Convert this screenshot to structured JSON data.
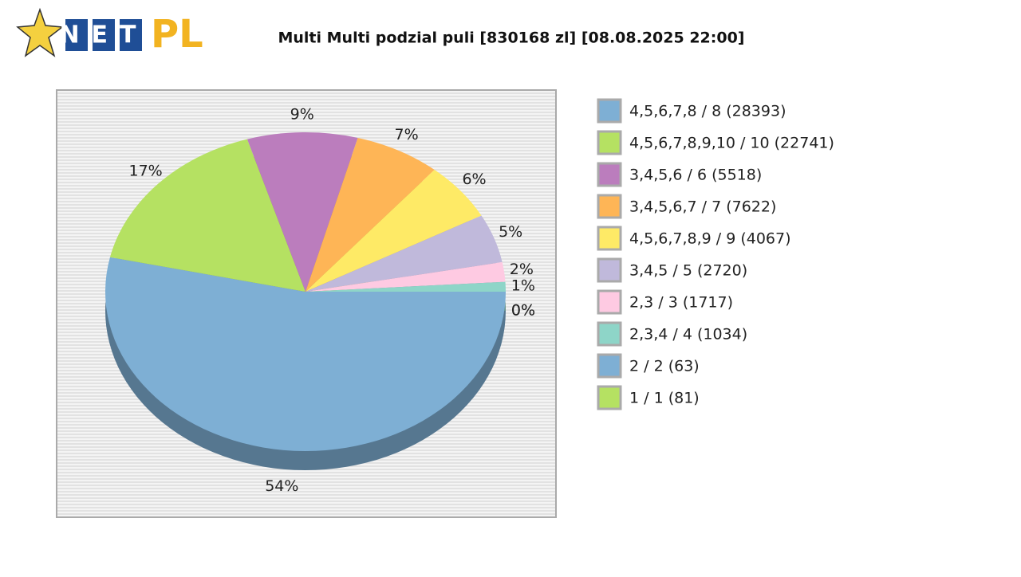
{
  "logo": {
    "net": "NET",
    "pl": "PL"
  },
  "chart_data": {
    "type": "pie",
    "title": "Multi Multi podzial puli [830168 zl] [08.08.2025 22:00]",
    "categories": [
      "4,5,6,7,8 / 8 (28393)",
      "4,5,6,7,8,9,10 / 10 (22741)",
      "3,4,5,6 / 6 (5518)",
      "3,4,5,6,7 / 7 (7622)",
      "4,5,6,7,8,9 / 9 (4067)",
      "3,4,5 / 5 (2720)",
      "2,3 / 3 (1717)",
      "2,3,4 / 4 (1034)",
      "2 / 2 (63)",
      "1 / 1 (81)"
    ],
    "values": [
      54,
      17,
      9,
      7,
      6,
      5,
      2,
      1,
      0,
      0
    ],
    "value_labels": [
      "54%",
      "17%",
      "9%",
      "7%",
      "6%",
      "5%",
      "2%",
      "1%",
      "0%",
      "0%"
    ],
    "colors": [
      "#7eafd4",
      "#b5e162",
      "#bb7dbd",
      "#feb556",
      "#feea66",
      "#c0b9db",
      "#fecae2",
      "#8ed5c8",
      "#7eafd4",
      "#b5e162"
    ],
    "legend": "right"
  }
}
